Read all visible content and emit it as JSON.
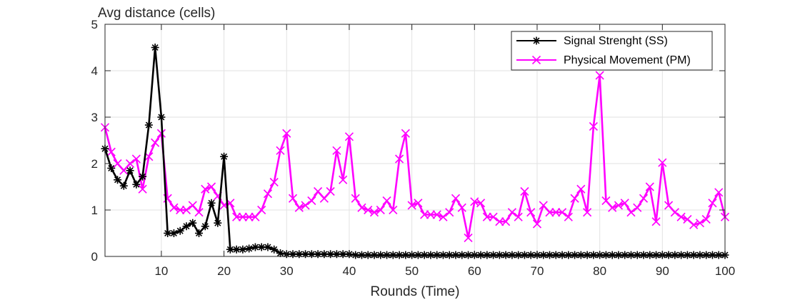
{
  "chart_data": {
    "type": "line",
    "title": "",
    "xlabel": "Rounds (Time)",
    "ylabel": "Avg distance (cells)",
    "xlim": [
      1,
      100
    ],
    "ylim": [
      0,
      5
    ],
    "xticks": [
      10,
      20,
      30,
      40,
      50,
      60,
      70,
      80,
      90,
      100
    ],
    "yticks": [
      0,
      1,
      2,
      3,
      4,
      5
    ],
    "grid": true,
    "legend_position": "top-right",
    "series": [
      {
        "name": "Signal Strenght (SS)",
        "color": "#000000",
        "marker": "asterisk",
        "x": [
          1,
          2,
          3,
          4,
          5,
          6,
          7,
          8,
          9,
          10,
          11,
          12,
          13,
          14,
          15,
          16,
          17,
          18,
          19,
          20,
          21,
          22,
          23,
          24,
          25,
          26,
          27,
          28,
          29,
          30,
          31,
          32,
          33,
          34,
          35,
          36,
          37,
          38,
          39,
          40,
          41,
          42,
          43,
          44,
          45,
          46,
          47,
          48,
          49,
          50,
          51,
          52,
          53,
          54,
          55,
          56,
          57,
          58,
          59,
          60,
          61,
          62,
          63,
          64,
          65,
          66,
          67,
          68,
          69,
          70,
          71,
          72,
          73,
          74,
          75,
          76,
          77,
          78,
          79,
          80,
          81,
          82,
          83,
          84,
          85,
          86,
          87,
          88,
          89,
          90,
          91,
          92,
          93,
          94,
          95,
          96,
          97,
          98,
          99,
          100
        ],
        "values": [
          2.32,
          1.9,
          1.65,
          1.52,
          1.85,
          1.55,
          1.72,
          2.83,
          4.5,
          3.0,
          0.5,
          0.5,
          0.55,
          0.65,
          0.72,
          0.5,
          0.65,
          1.15,
          0.72,
          2.15,
          0.15,
          0.15,
          0.15,
          0.17,
          0.2,
          0.2,
          0.2,
          0.15,
          0.07,
          0.05,
          0.05,
          0.05,
          0.05,
          0.05,
          0.05,
          0.05,
          0.05,
          0.05,
          0.05,
          0.05,
          0.03,
          0.03,
          0.03,
          0.03,
          0.03,
          0.03,
          0.03,
          0.03,
          0.03,
          0.03,
          0.03,
          0.03,
          0.03,
          0.03,
          0.03,
          0.03,
          0.03,
          0.03,
          0.03,
          0.03,
          0.03,
          0.03,
          0.03,
          0.03,
          0.03,
          0.03,
          0.03,
          0.03,
          0.03,
          0.03,
          0.03,
          0.03,
          0.03,
          0.03,
          0.03,
          0.03,
          0.03,
          0.03,
          0.03,
          0.03,
          0.03,
          0.03,
          0.03,
          0.03,
          0.03,
          0.03,
          0.03,
          0.03,
          0.03,
          0.03,
          0.03,
          0.03,
          0.03,
          0.03,
          0.03,
          0.03,
          0.03,
          0.03,
          0.03,
          0.03
        ]
      },
      {
        "name": "Physical Movement (PM)",
        "color": "#ff00ff",
        "marker": "x",
        "x": [
          1,
          2,
          3,
          4,
          5,
          6,
          7,
          8,
          9,
          10,
          11,
          12,
          13,
          14,
          15,
          16,
          17,
          18,
          19,
          20,
          21,
          22,
          23,
          24,
          25,
          26,
          27,
          28,
          29,
          30,
          31,
          32,
          33,
          34,
          35,
          36,
          37,
          38,
          39,
          40,
          41,
          42,
          43,
          44,
          45,
          46,
          47,
          48,
          49,
          50,
          51,
          52,
          53,
          54,
          55,
          56,
          57,
          58,
          59,
          60,
          61,
          62,
          63,
          64,
          65,
          66,
          67,
          68,
          69,
          70,
          71,
          72,
          73,
          74,
          75,
          76,
          77,
          78,
          79,
          80,
          81,
          82,
          83,
          84,
          85,
          86,
          87,
          88,
          89,
          90,
          91,
          92,
          93,
          94,
          95,
          96,
          97,
          98,
          99,
          100
        ],
        "values": [
          2.78,
          2.25,
          2.0,
          1.85,
          2.0,
          2.1,
          1.45,
          2.15,
          2.45,
          2.65,
          1.25,
          1.05,
          1.0,
          1.0,
          1.1,
          0.95,
          1.45,
          1.5,
          1.3,
          1.1,
          1.15,
          0.85,
          0.85,
          0.85,
          0.85,
          1.0,
          1.35,
          1.6,
          2.28,
          2.65,
          1.25,
          1.05,
          1.1,
          1.2,
          1.4,
          1.25,
          1.4,
          2.28,
          1.65,
          2.58,
          1.25,
          1.05,
          1.0,
          0.95,
          1.0,
          1.2,
          1.0,
          2.1,
          2.65,
          1.1,
          1.15,
          0.9,
          0.9,
          0.9,
          0.85,
          0.95,
          1.25,
          1.05,
          0.4,
          1.18,
          1.15,
          0.85,
          0.85,
          0.75,
          0.75,
          0.95,
          0.85,
          1.4,
          0.95,
          0.7,
          1.1,
          0.95,
          0.95,
          0.95,
          0.85,
          1.25,
          1.45,
          0.95,
          2.8,
          3.9,
          1.2,
          1.05,
          1.1,
          1.15,
          0.95,
          1.05,
          1.25,
          1.5,
          0.75,
          2.02,
          1.1,
          0.95,
          0.85,
          0.8,
          0.68,
          0.72,
          0.8,
          1.15,
          1.38,
          0.85
        ]
      }
    ]
  }
}
